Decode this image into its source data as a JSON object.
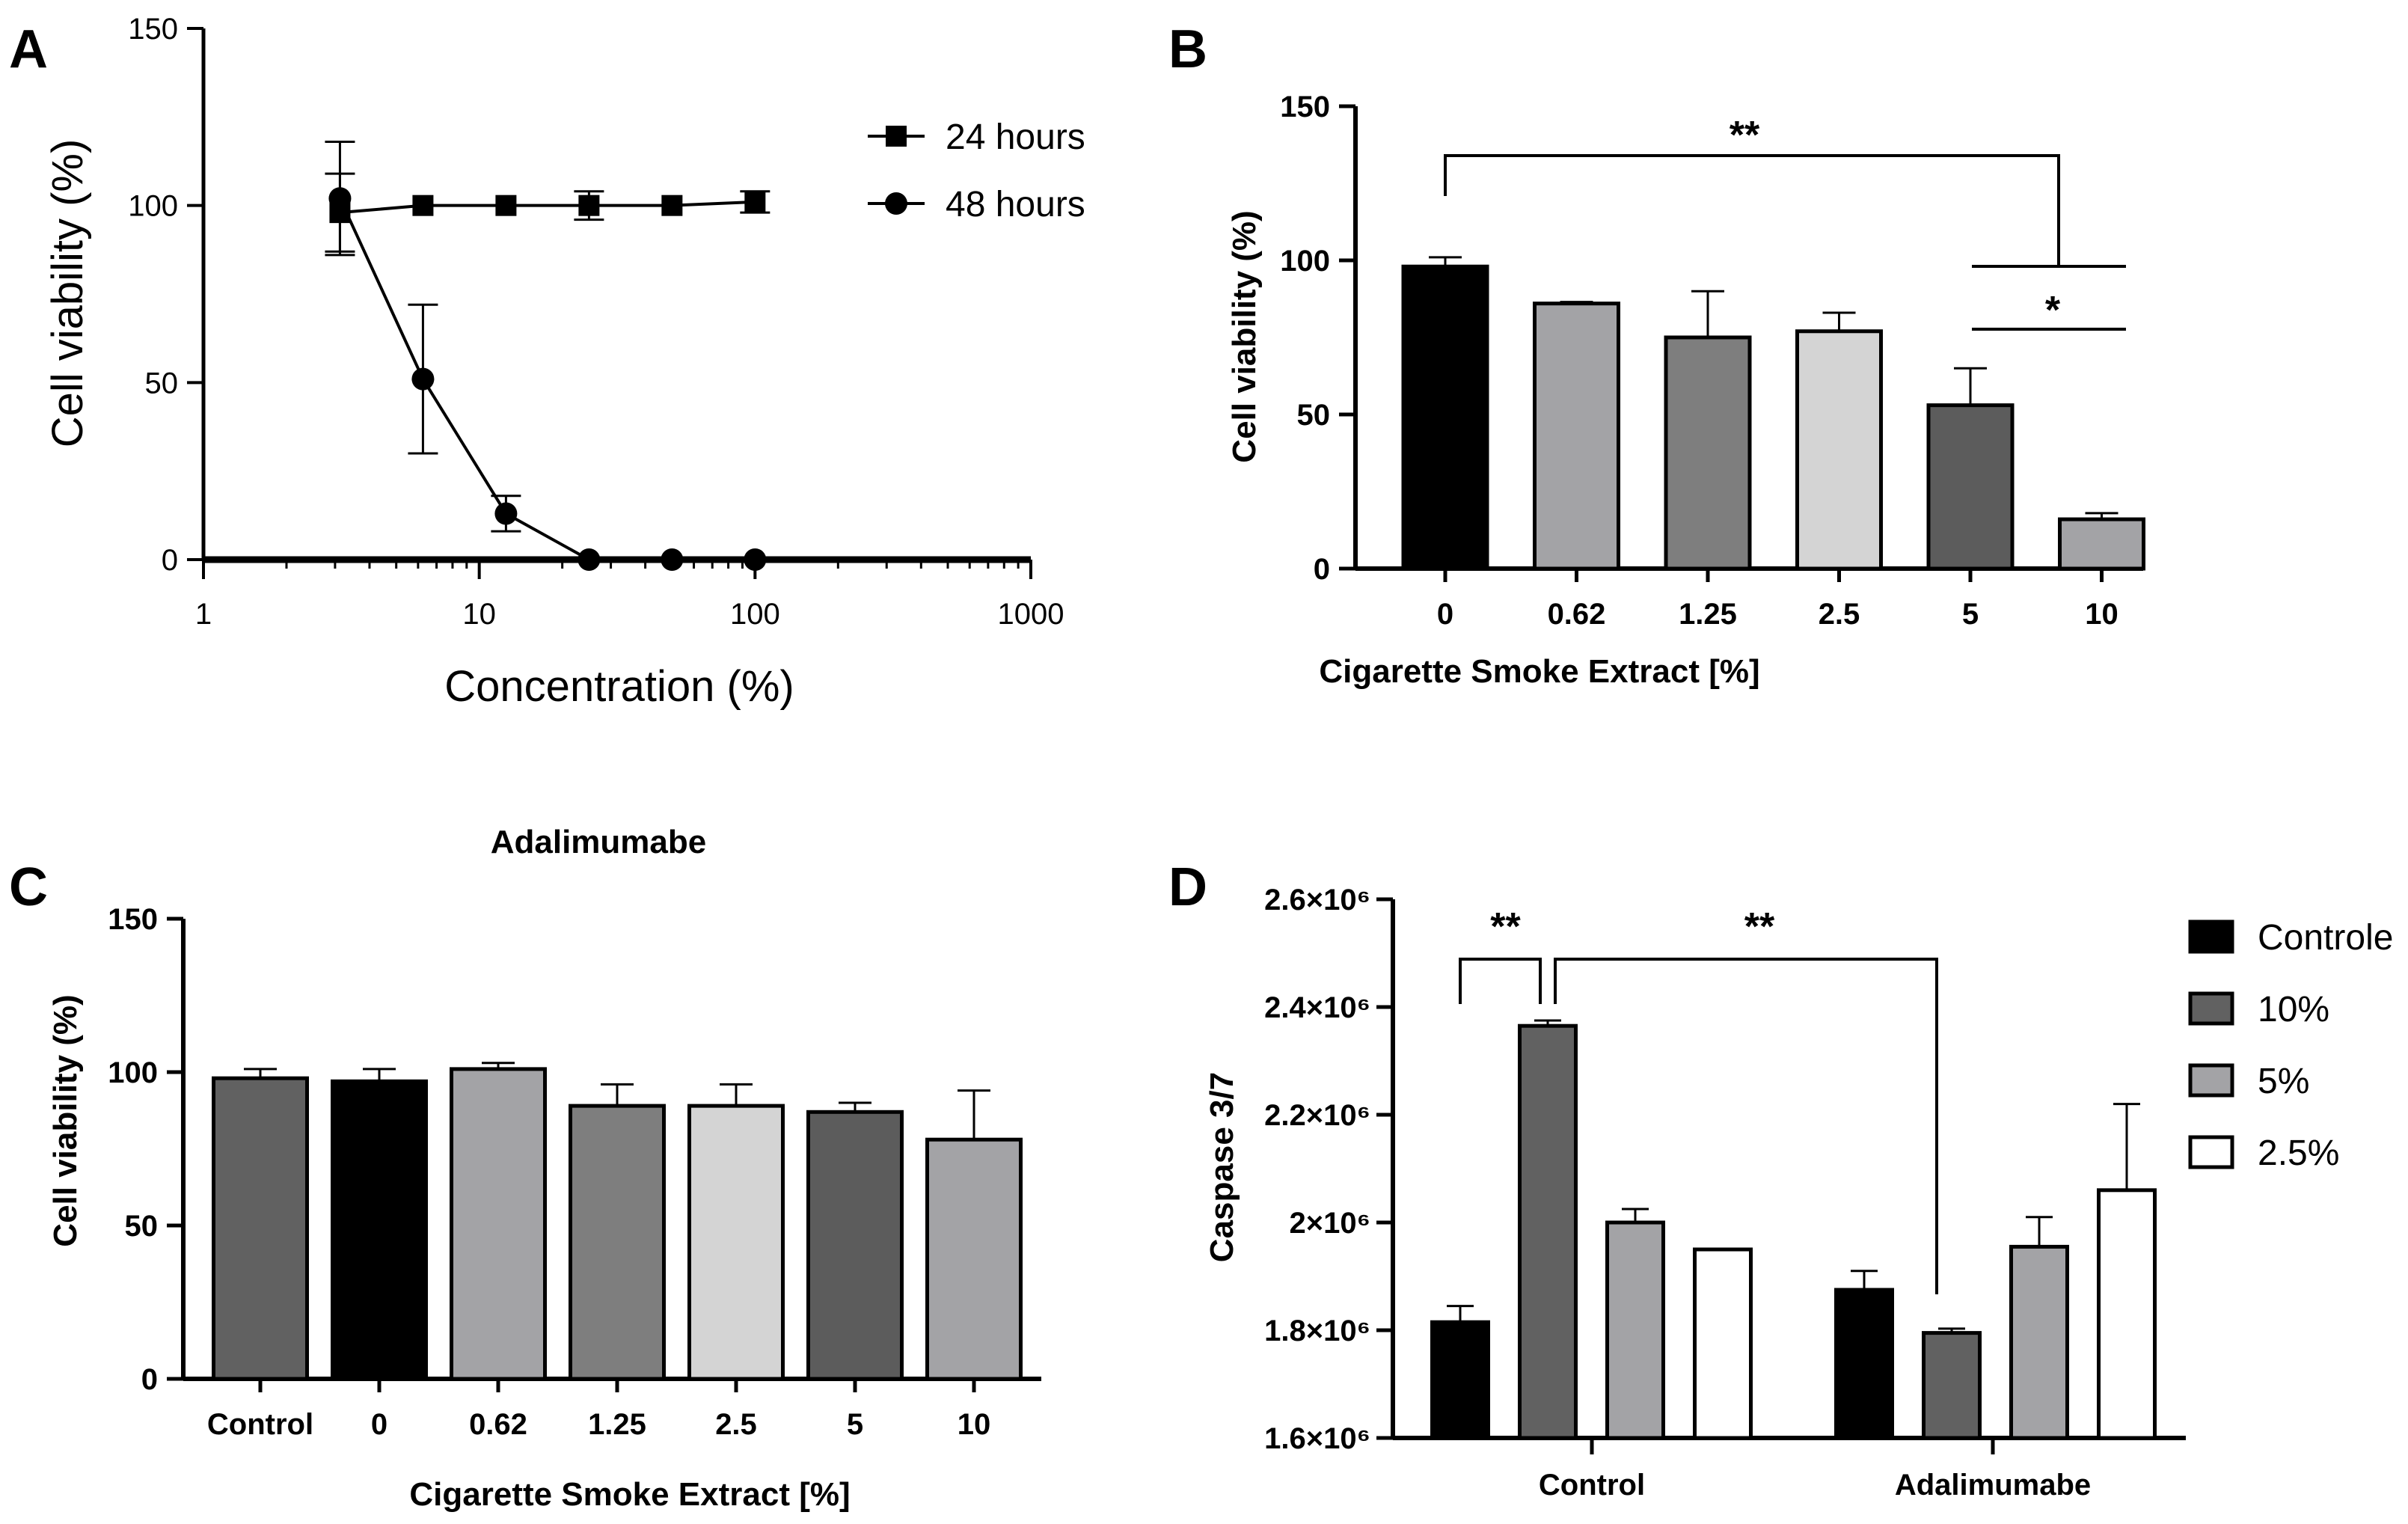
{
  "figure": {
    "panels": {
      "a": "A",
      "b": "B",
      "c": "C",
      "d": "D"
    }
  },
  "chart_data": [
    {
      "panel": "A",
      "type": "line",
      "xscale": "log",
      "xlabel": "Concentration (%)",
      "ylabel": "Cell viability (%)",
      "xlim": [
        1,
        1000
      ],
      "ylim": [
        0,
        150
      ],
      "xticks": [
        {
          "value": 1,
          "label": "1"
        },
        {
          "value": 10,
          "label": "10"
        },
        {
          "value": 100,
          "label": "100"
        },
        {
          "value": 1000,
          "label": "1000"
        }
      ],
      "yticks": [
        {
          "value": 0,
          "label": "0"
        },
        {
          "value": 50,
          "label": "50"
        },
        {
          "value": 100,
          "label": "100"
        },
        {
          "value": 150,
          "label": "150"
        }
      ],
      "legend_position": "top-right",
      "series": [
        {
          "name": "24 hours",
          "marker": "square",
          "x": [
            3.125,
            6.25,
            12.5,
            25,
            50,
            100
          ],
          "y": [
            98,
            100,
            100,
            100,
            100,
            101
          ],
          "err": [
            11,
            0,
            0,
            4,
            0,
            3
          ]
        },
        {
          "name": "48 hours",
          "marker": "circle",
          "x": [
            3.125,
            6.25,
            12.5,
            25,
            50,
            100
          ],
          "y": [
            102,
            51,
            13,
            0,
            0,
            0
          ],
          "err": [
            16,
            21,
            5,
            0,
            0,
            0
          ]
        }
      ]
    },
    {
      "panel": "B",
      "type": "bar",
      "title": "",
      "xlabel": "Cigarette Smoke Extract [%]",
      "ylabel": "Cell viability (%)",
      "ylim": [
        0,
        150
      ],
      "yticks": [
        {
          "value": 0,
          "label": "0"
        },
        {
          "value": 50,
          "label": "50"
        },
        {
          "value": 100,
          "label": "100"
        },
        {
          "value": 150,
          "label": "150"
        }
      ],
      "categories": [
        "0",
        "0.62",
        "1.25",
        "2.5",
        "5",
        "10"
      ],
      "values": [
        98,
        86,
        75,
        77,
        53,
        16
      ],
      "errors": [
        3,
        0.5,
        15,
        6,
        12,
        2
      ],
      "colors": [
        "#000000",
        "#a3a3a6",
        "#7e7e7e",
        "#d4d4d4",
        "#5c5c5c",
        "#a3a3a6"
      ],
      "significance": [
        {
          "from": "0",
          "to": "10",
          "label": "**"
        },
        {
          "from": "5",
          "to": "10",
          "label": "*"
        }
      ]
    },
    {
      "panel": "C",
      "type": "bar",
      "title": "Adalimumabe",
      "xlabel": "Cigarette Smoke Extract [%]",
      "ylabel": "Cell viability (%)",
      "ylim": [
        0,
        150
      ],
      "yticks": [
        {
          "value": 0,
          "label": "0"
        },
        {
          "value": 50,
          "label": "50"
        },
        {
          "value": 100,
          "label": "100"
        },
        {
          "value": 150,
          "label": "150"
        }
      ],
      "categories": [
        "Control",
        "0",
        "0.62",
        "1.25",
        "2.5",
        "5",
        "10"
      ],
      "values": [
        98,
        97,
        101,
        89,
        89,
        87,
        78
      ],
      "errors": [
        3,
        4,
        2,
        7,
        7,
        3,
        16
      ],
      "colors": [
        "#616161",
        "#000000",
        "#a3a3a6",
        "#7e7e7e",
        "#d4d4d4",
        "#5c5c5c",
        "#a3a3a6"
      ]
    },
    {
      "panel": "D",
      "type": "bar",
      "title": "",
      "xlabel": "",
      "ylabel": "Caspase 3/7",
      "ylim": [
        1600000,
        2600000
      ],
      "yticks": [
        {
          "value": 1600000,
          "label": "1.6×10⁶"
        },
        {
          "value": 1800000,
          "label": "1.8×10⁶"
        },
        {
          "value": 2000000,
          "label": "2×10⁶"
        },
        {
          "value": 2200000,
          "label": "2.2×10⁶"
        },
        {
          "value": 2400000,
          "label": "2.4×10⁶"
        },
        {
          "value": 2600000,
          "label": "2.6×10⁶"
        }
      ],
      "categories": [
        "Control",
        "Adalimumabe"
      ],
      "legend_position": "right",
      "series": [
        {
          "name": "Controle",
          "color": "#000000",
          "values": [
            1815000,
            1875000
          ],
          "errors": [
            30000,
            35000
          ]
        },
        {
          "name": "10%",
          "color": "#616161",
          "values": [
            2365000,
            1795000
          ],
          "errors": [
            10000,
            8000
          ]
        },
        {
          "name": "5%",
          "color": "#a3a3a6",
          "values": [
            2000000,
            1955000
          ],
          "errors": [
            25000,
            55000
          ]
        },
        {
          "name": "2.5%",
          "color": "#ffffff",
          "values": [
            1950000,
            2060000
          ],
          "errors": [
            0,
            160000
          ]
        }
      ],
      "significance": [
        {
          "label": "**",
          "from": "Control / Controle",
          "to": "Control / 10%"
        },
        {
          "label": "**",
          "from": "Control / 10%",
          "to": "Adalimumabe / 10%"
        }
      ]
    }
  ]
}
